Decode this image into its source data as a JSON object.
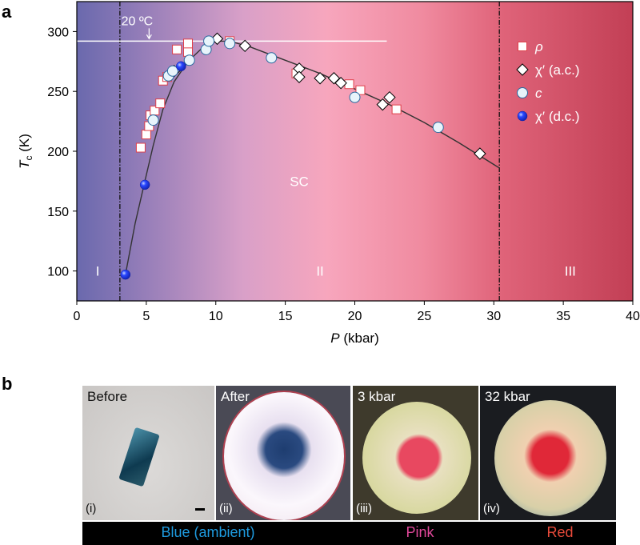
{
  "panel_a_label": "a",
  "panel_b_label": "b",
  "chart_data": {
    "type": "scatter",
    "xlabel": "P (kbar)",
    "xlabel_var": "P",
    "xlabel_unit": " (kbar)",
    "ylabel_var": "T",
    "ylabel_sub": "c",
    "ylabel_unit": " (K)",
    "xlim": [
      0,
      40
    ],
    "ylim": [
      75,
      325
    ],
    "xticks": [
      0,
      5,
      10,
      15,
      20,
      25,
      30,
      35,
      40
    ],
    "yticks": [
      100,
      150,
      200,
      250,
      300
    ],
    "legend_placement": "top-right",
    "phase_boundaries_kbar": [
      3.1,
      30.4
    ],
    "regions": [
      {
        "label": "I",
        "x": 1.5,
        "y": 100
      },
      {
        "label": "II",
        "x": 17.5,
        "y": 100
      },
      {
        "label": "III",
        "x": 35.5,
        "y": 100
      },
      {
        "label": "SC",
        "x": 16,
        "y": 175
      }
    ],
    "room_temperature": {
      "label": "20 ºC",
      "T": 292,
      "x_end": 22.3
    },
    "series": [
      {
        "name": "ρ",
        "marker": "square",
        "color": "#ffffff",
        "edge": "#e0404a",
        "points": [
          [
            4.6,
            203
          ],
          [
            5.0,
            214
          ],
          [
            5.2,
            221
          ],
          [
            5.3,
            230
          ],
          [
            5.6,
            234
          ],
          [
            6.0,
            240
          ],
          [
            6.2,
            259
          ],
          [
            6.5,
            262
          ],
          [
            7.2,
            285
          ],
          [
            8.0,
            283
          ],
          [
            8.0,
            290
          ],
          [
            11.0,
            292
          ],
          [
            15.8,
            265
          ],
          [
            19.6,
            256
          ],
          [
            20.4,
            251
          ],
          [
            23.0,
            235
          ]
        ]
      },
      {
        "name": "χ′ (a.c.)",
        "marker": "diamond",
        "color": "#ffffff",
        "edge": "#000000",
        "points": [
          [
            7.0,
            267
          ],
          [
            10.1,
            294
          ],
          [
            12.1,
            288
          ],
          [
            16.0,
            269
          ],
          [
            16.0,
            262
          ],
          [
            17.5,
            261
          ],
          [
            18.5,
            261
          ],
          [
            19.0,
            257
          ],
          [
            22.0,
            239
          ],
          [
            22.5,
            245
          ],
          [
            29.0,
            198
          ]
        ]
      },
      {
        "name": "c",
        "marker": "circle",
        "color": "#e8f4fb",
        "edge": "#2a6aa0",
        "points": [
          [
            5.5,
            226
          ],
          [
            6.6,
            263
          ],
          [
            6.9,
            267
          ],
          [
            8.1,
            276
          ],
          [
            9.3,
            285
          ],
          [
            9.5,
            292
          ],
          [
            11.0,
            290
          ],
          [
            14.0,
            278
          ],
          [
            20.0,
            245
          ],
          [
            26.0,
            220
          ]
        ]
      },
      {
        "name": "χ′ (d.c.)",
        "marker": "ball",
        "color": "#1f3df0",
        "edge": "#1020a0",
        "points": [
          [
            3.5,
            97
          ],
          [
            4.9,
            172
          ],
          [
            7.5,
            271
          ]
        ]
      }
    ],
    "guide_curve": [
      [
        3.5,
        97
      ],
      [
        4.2,
        140
      ],
      [
        4.9,
        175
      ],
      [
        5.5,
        205
      ],
      [
        6.2,
        235
      ],
      [
        7.0,
        258
      ],
      [
        8.0,
        275
      ],
      [
        9.0,
        286
      ],
      [
        10.0,
        292
      ],
      [
        11.0,
        292
      ],
      [
        12.5,
        287
      ],
      [
        15.0,
        276
      ],
      [
        17.5,
        265
      ],
      [
        20.0,
        252
      ],
      [
        22.5,
        239
      ],
      [
        25.0,
        224
      ],
      [
        27.5,
        207
      ],
      [
        30.4,
        186
      ]
    ]
  },
  "photos": [
    {
      "caption": "Before",
      "index": "(i)"
    },
    {
      "caption": "After",
      "index": "(ii)"
    },
    {
      "caption": "3 kbar",
      "index": "(iii)"
    },
    {
      "caption": "32 kbar",
      "index": "(iv)"
    }
  ],
  "color_bar": [
    {
      "label": "Blue (ambient)",
      "color": "#1e9be0"
    },
    {
      "label": "Pink",
      "color": "#e0489a"
    },
    {
      "label": "Red",
      "color": "#e84a3a"
    }
  ]
}
